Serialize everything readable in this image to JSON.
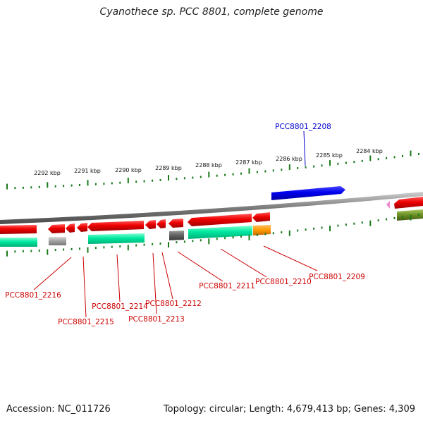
{
  "title": "Cyanothece sp. PCC 8801, complete genome",
  "footer": {
    "accession": "Accession: NC_011726",
    "summary": "Topology: circular; Length: 4,679,413 bp; Genes: 4,309"
  },
  "colors": {
    "background": "#ffffff",
    "backbone": "#808080",
    "ticks": "#1a7a1a",
    "label_forward": "#0000cc",
    "label_reverse": "#cc0000",
    "gene_forward": "#0000ee",
    "gene_reverse": "#ee0000",
    "cds_teal": "#00e8a0",
    "cds_gray": "#a0a0a0",
    "cds_darkgray": "#606060",
    "cds_orange": "#ff9900",
    "cds_olive": "#6b8e23",
    "misc_pink": "#ee88cc"
  },
  "scale_labels": [
    "2292 kbp",
    "2291 kbp",
    "2290 kbp",
    "2289 kbp",
    "2288 kbp",
    "2287 kbp",
    "2286 kbp",
    "2285 kbp",
    "2284 kbp"
  ],
  "gene_labels": [
    {
      "id": "PCC8801_2208",
      "strand": "forward"
    },
    {
      "id": "PCC8801_2209",
      "strand": "reverse"
    },
    {
      "id": "PCC8801_2210",
      "strand": "reverse"
    },
    {
      "id": "PCC8801_2211",
      "strand": "reverse"
    },
    {
      "id": "PCC8801_2212",
      "strand": "reverse"
    },
    {
      "id": "PCC8801_2213",
      "strand": "reverse"
    },
    {
      "id": "PCC8801_2214",
      "strand": "reverse"
    },
    {
      "id": "PCC8801_2215",
      "strand": "reverse"
    },
    {
      "id": "PCC8801_2216",
      "strand": "reverse"
    }
  ]
}
